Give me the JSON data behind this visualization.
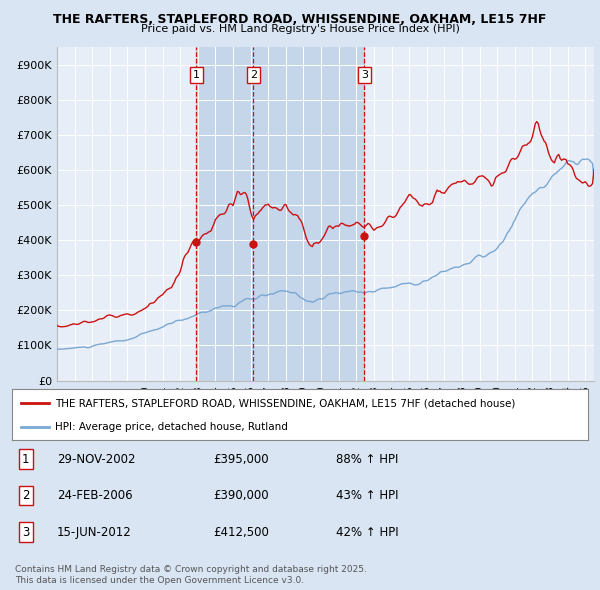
{
  "title_line1": "THE RAFTERS, STAPLEFORD ROAD, WHISSENDINE, OAKHAM, LE15 7HF",
  "title_line2": "Price paid vs. HM Land Registry's House Price Index (HPI)",
  "bg_color": "#d9e5f3",
  "plot_bg_color": "#e8eef8",
  "shade_color": "#c5d5ea",
  "red_color": "#cc1111",
  "blue_color": "#7aa8d2",
  "vline_color": "#cc1111",
  "grid_color": "#ffffff",
  "ylim": [
    0,
    950000
  ],
  "yticks": [
    0,
    100000,
    200000,
    300000,
    400000,
    500000,
    600000,
    700000,
    800000,
    900000
  ],
  "ytick_labels": [
    "£0",
    "£100K",
    "£200K",
    "£300K",
    "£400K",
    "£500K",
    "£600K",
    "£700K",
    "£800K",
    "£900K"
  ],
  "sale1_date": 2002.91,
  "sale1_price": 395000,
  "sale1_label": "1",
  "sale2_date": 2006.15,
  "sale2_price": 390000,
  "sale2_label": "2",
  "sale3_date": 2012.46,
  "sale3_price": 412500,
  "sale3_label": "3",
  "legend_red": "THE RAFTERS, STAPLEFORD ROAD, WHISSENDINE, OAKHAM, LE15 7HF (detached house)",
  "legend_blue": "HPI: Average price, detached house, Rutland",
  "table_row1": [
    "1",
    "29-NOV-2002",
    "£395,000",
    "88% ↑ HPI"
  ],
  "table_row2": [
    "2",
    "24-FEB-2006",
    "£390,000",
    "43% ↑ HPI"
  ],
  "table_row3": [
    "3",
    "15-JUN-2012",
    "£412,500",
    "42% ↑ HPI"
  ],
  "footer": "Contains HM Land Registry data © Crown copyright and database right 2025.\nThis data is licensed under the Open Government Licence v3.0.",
  "xmin": 1995.0,
  "xmax": 2025.5
}
